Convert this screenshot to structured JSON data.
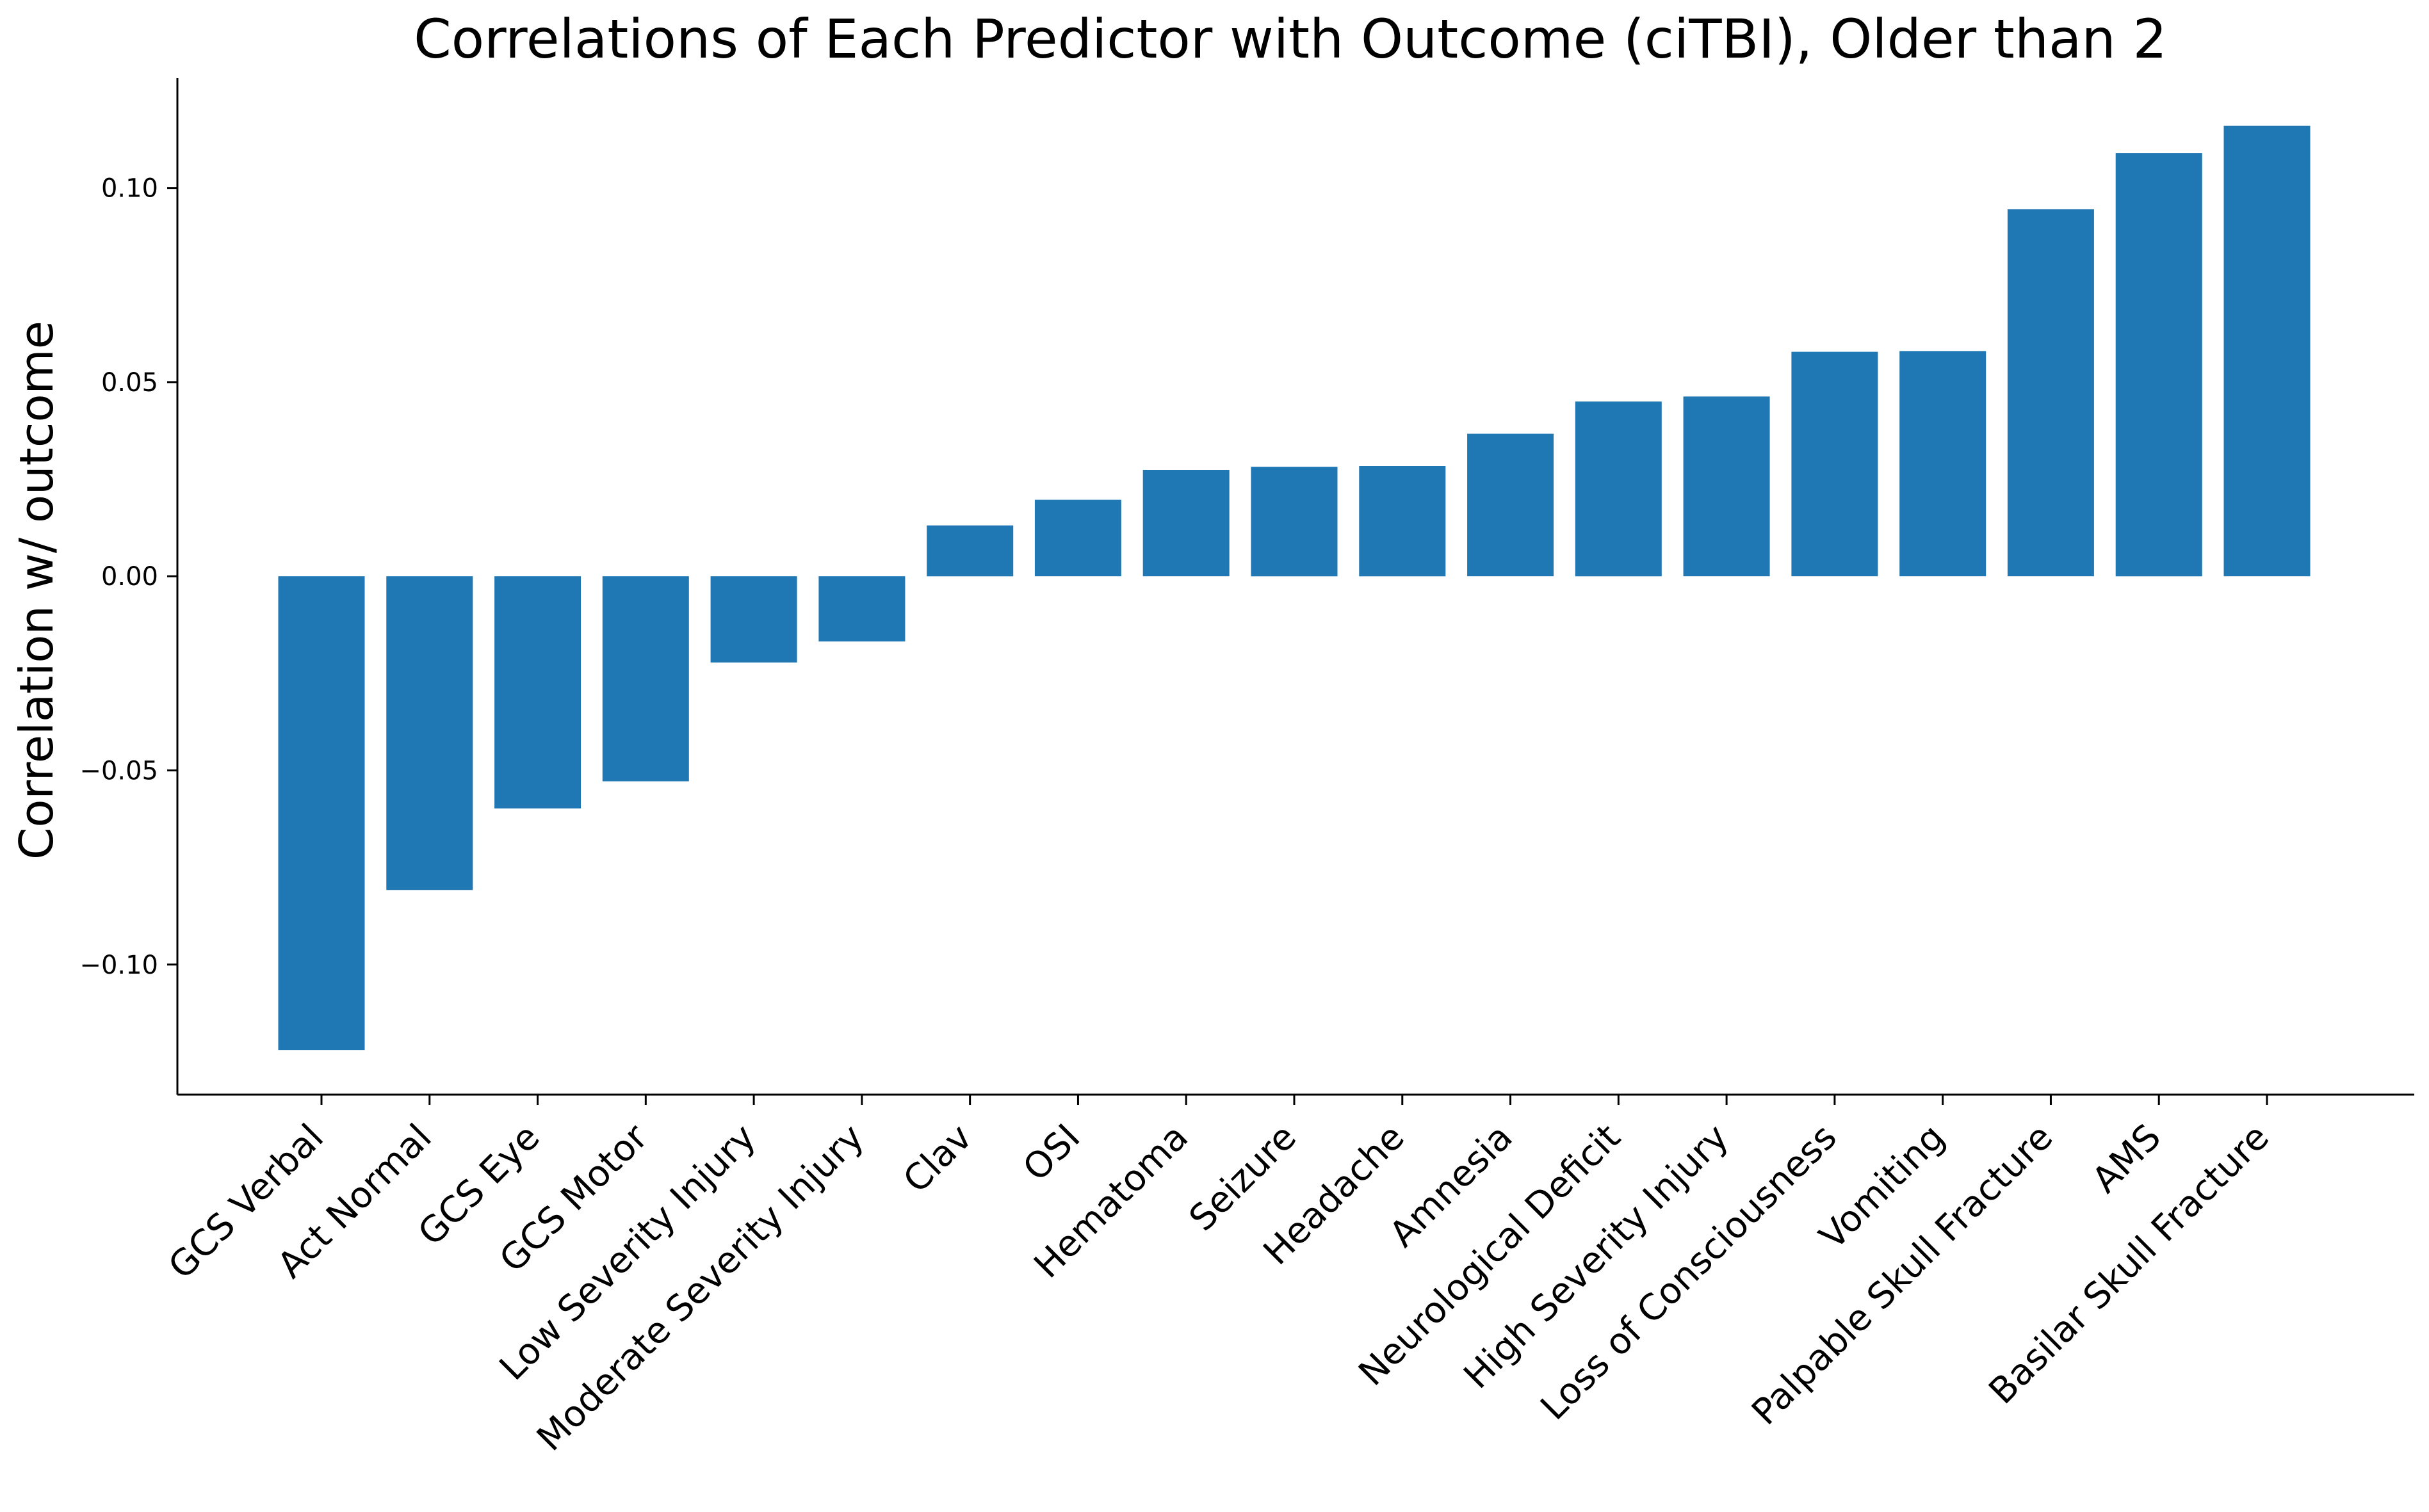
{
  "chart_data": {
    "type": "bar",
    "title": "Correlations of Each Predictor with Outcome (ciTBI), Older than 2",
    "xlabel": "",
    "ylabel": "Correlation w/ outcome",
    "categories": [
      "GCS Verbal",
      "Act Normal",
      "GCS Eye",
      "GCS Motor",
      "Low Severity Injury",
      "Moderate Severity Injury",
      "Clav",
      "OSI",
      "Hematoma",
      "Seizure",
      "Headache",
      "Amnesia",
      "Neurological Deficit",
      "High Severity Injury",
      "Loss of Consciousness",
      "Vomiting",
      "Palpable Skull Fracture",
      "AMS",
      "Basilar Skull Fracture"
    ],
    "values": [
      -0.122,
      -0.0808,
      -0.0598,
      -0.0528,
      -0.0222,
      -0.0168,
      0.0131,
      0.0197,
      0.0274,
      0.0282,
      0.0284,
      0.0367,
      0.045,
      0.0463,
      0.0578,
      0.058,
      0.0945,
      0.109,
      0.116
    ],
    "ylim": [
      -0.1335,
      0.1283
    ],
    "yticks": [
      -0.1,
      -0.05,
      0.0,
      0.05,
      0.1
    ],
    "ytick_labels": [
      "−0.10",
      "−0.05",
      "0.00",
      "0.05",
      "0.10"
    ],
    "bar_color": "#1f77b4",
    "grid": false,
    "legend": "none"
  }
}
